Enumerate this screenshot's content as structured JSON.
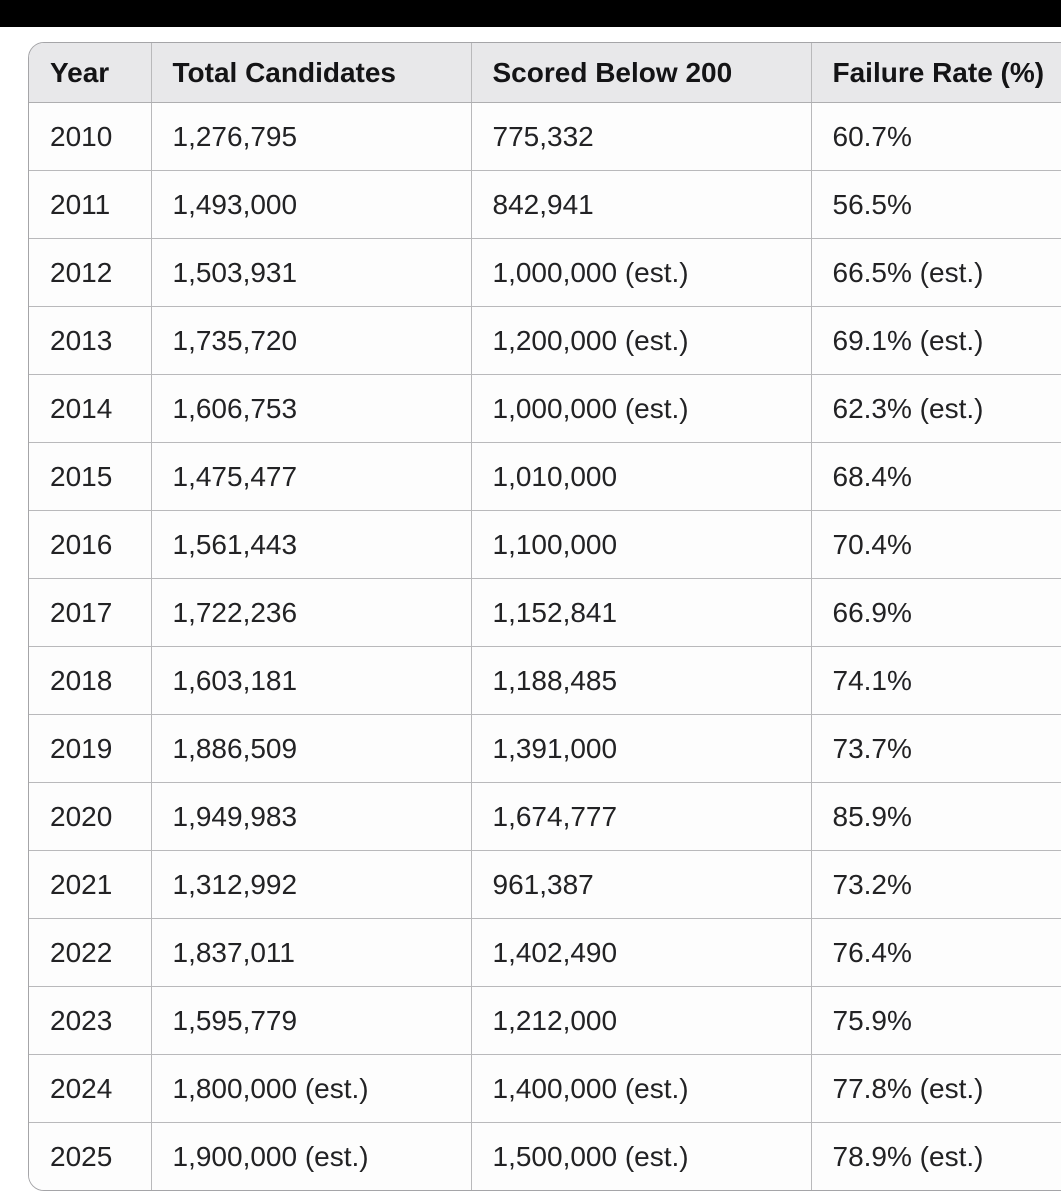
{
  "table": {
    "columns": [
      {
        "key": "year",
        "label": "Year"
      },
      {
        "key": "total",
        "label": "Total Candidates"
      },
      {
        "key": "below",
        "label": "Scored Below 200"
      },
      {
        "key": "rate",
        "label": "Failure Rate (%)"
      }
    ],
    "rows": [
      [
        "2010",
        "1,276,795",
        "775,332",
        "60.7%"
      ],
      [
        "2011",
        "1,493,000",
        "842,941",
        "56.5%"
      ],
      [
        "2012",
        "1,503,931",
        "1,000,000 (est.)",
        "66.5% (est.)"
      ],
      [
        "2013",
        "1,735,720",
        "1,200,000 (est.)",
        "69.1% (est.)"
      ],
      [
        "2014",
        "1,606,753",
        "1,000,000 (est.)",
        "62.3% (est.)"
      ],
      [
        "2015",
        "1,475,477",
        "1,010,000",
        "68.4%"
      ],
      [
        "2016",
        "1,561,443",
        "1,100,000",
        "70.4%"
      ],
      [
        "2017",
        "1,722,236",
        "1,152,841",
        "66.9%"
      ],
      [
        "2018",
        "1,603,181",
        "1,188,485",
        "74.1%"
      ],
      [
        "2019",
        "1,886,509",
        "1,391,000",
        "73.7%"
      ],
      [
        "2020",
        "1,949,983",
        "1,674,777",
        "85.9%"
      ],
      [
        "2021",
        "1,312,992",
        "961,387",
        "73.2%"
      ],
      [
        "2022",
        "1,837,011",
        "1,402,490",
        "76.4%"
      ],
      [
        "2023",
        "1,595,779",
        "1,212,000",
        "75.9%"
      ],
      [
        "2024",
        "1,800,000 (est.)",
        "1,400,000 (est.)",
        "77.8% (est.)"
      ],
      [
        "2025",
        "1,900,000 (est.)",
        "1,500,000 (est.)",
        "78.9% (est.)"
      ]
    ]
  },
  "colors": {
    "top_bar": "#000000",
    "header_bg": "#e8e8ea",
    "row_bg": "#fdfdfd",
    "grid_border": "#b9b9bb",
    "outer_border": "#a5a5a8",
    "header_text": "#141416",
    "cell_text": "#222224"
  },
  "chart_data": {
    "type": "table",
    "columns": [
      "Year",
      "Total Candidates",
      "Scored Below 200",
      "Failure Rate (%)"
    ],
    "years": [
      2010,
      2011,
      2012,
      2013,
      2014,
      2015,
      2016,
      2017,
      2018,
      2019,
      2020,
      2021,
      2022,
      2023,
      2024,
      2025
    ],
    "total_candidates": [
      1276795,
      1493000,
      1503931,
      1735720,
      1606753,
      1475477,
      1561443,
      1722236,
      1603181,
      1886509,
      1949983,
      1312992,
      1837011,
      1595779,
      1800000,
      1900000
    ],
    "scored_below_200": [
      775332,
      842941,
      1000000,
      1200000,
      1000000,
      1010000,
      1100000,
      1152841,
      1188485,
      1391000,
      1674777,
      961387,
      1402490,
      1212000,
      1400000,
      1500000
    ],
    "failure_rate_pct": [
      60.7,
      56.5,
      66.5,
      69.1,
      62.3,
      68.4,
      70.4,
      66.9,
      74.1,
      73.7,
      85.9,
      73.2,
      76.4,
      75.9,
      77.8,
      78.9
    ],
    "estimated_flags": {
      "total_candidates_est_years": [
        2024,
        2025
      ],
      "scored_below_200_est_years": [
        2012,
        2013,
        2014,
        2024,
        2025
      ],
      "failure_rate_est_years": [
        2012,
        2013,
        2014,
        2024,
        2025
      ]
    }
  }
}
